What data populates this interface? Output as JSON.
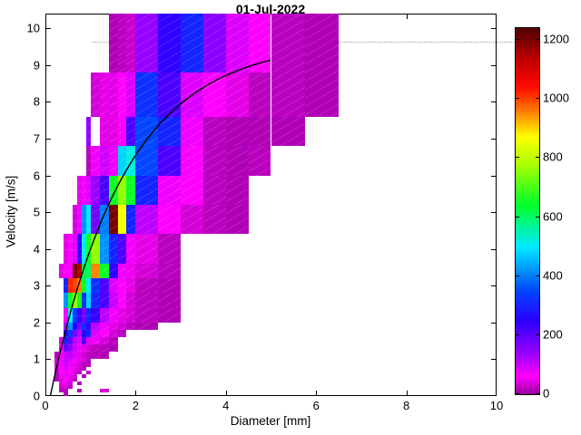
{
  "chart": {
    "title": "01-Jul-2022",
    "xlabel": "Diameter [mm]",
    "ylabel": "Velocity [m/s]"
  },
  "chart_data": {
    "type": "heatmap",
    "title": "01-Jul-2022",
    "xlabel": "Diameter [mm]",
    "ylabel": "Velocity [m/s]",
    "xlim": [
      0,
      10
    ],
    "ylim": [
      0,
      10.4
    ],
    "x_ticks": [
      0,
      2,
      4,
      6,
      8,
      10
    ],
    "y_ticks": [
      0,
      1,
      2,
      3,
      4,
      5,
      6,
      7,
      8,
      9,
      10
    ],
    "grid": "dotted line at velocity = 10 only",
    "legend_position": "colorbar right",
    "colorbar_ticks": [
      0,
      200,
      400,
      600,
      800,
      1000,
      1200
    ],
    "cmax": 1240,
    "colormap_stops": [
      [
        0,
        [
          150,
          0,
          158
        ]
      ],
      [
        60,
        [
          255,
          0,
          255
        ]
      ],
      [
        140,
        [
          150,
          0,
          255
        ]
      ],
      [
        250,
        [
          40,
          0,
          255
        ]
      ],
      [
        350,
        [
          0,
          70,
          255
        ]
      ],
      [
        500,
        [
          0,
          235,
          255
        ]
      ],
      [
        640,
        [
          0,
          255,
          40
        ]
      ],
      [
        780,
        [
          170,
          255,
          0
        ]
      ],
      [
        870,
        [
          255,
          255,
          0
        ]
      ],
      [
        960,
        [
          255,
          120,
          0
        ]
      ],
      [
        1040,
        [
          255,
          10,
          0
        ]
      ],
      [
        1140,
        [
          185,
          0,
          0
        ]
      ],
      [
        1240,
        [
          80,
          0,
          0
        ]
      ]
    ],
    "d_edges": [
      0.2,
      0.3,
      0.4,
      0.5,
      0.6,
      0.7,
      0.8,
      0.9,
      1.0,
      1.2,
      1.4,
      1.6,
      1.8,
      2.0,
      2.5,
      3.0,
      3.5,
      4.0,
      4.5,
      5.0,
      5.75,
      6.5
    ],
    "v_edges": [
      0,
      0.1,
      0.2,
      0.3,
      0.4,
      0.5,
      0.6,
      0.7,
      0.8,
      0.9,
      1.0,
      1.2,
      1.4,
      1.6,
      1.8,
      2.0,
      2.4,
      2.8,
      3.2,
      3.6,
      4.4,
      5.2,
      6.0,
      6.8,
      7.6,
      8.8,
      10.4
    ],
    "counts": [
      [
        0,
        0,
        15,
        0,
        0,
        0,
        0,
        0,
        0,
        0,
        0,
        0,
        0,
        0,
        0,
        0,
        0,
        0,
        0,
        0,
        0
      ],
      [
        0,
        20,
        20,
        0,
        0,
        15,
        0,
        0,
        0,
        35,
        0,
        0,
        0,
        0,
        0,
        0,
        0,
        0,
        0,
        0,
        0
      ],
      [
        0,
        35,
        45,
        20,
        0,
        0,
        0,
        0,
        0,
        0,
        0,
        0,
        0,
        0,
        0,
        0,
        0,
        0,
        0,
        0,
        0
      ],
      [
        0,
        45,
        50,
        35,
        0,
        20,
        0,
        0,
        0,
        0,
        0,
        0,
        0,
        0,
        0,
        0,
        0,
        0,
        0,
        0,
        0
      ],
      [
        20,
        45,
        60,
        45,
        20,
        0,
        0,
        0,
        0,
        0,
        0,
        0,
        0,
        0,
        0,
        0,
        0,
        0,
        0,
        0,
        0
      ],
      [
        20,
        50,
        70,
        50,
        35,
        0,
        20,
        0,
        0,
        0,
        0,
        0,
        0,
        0,
        0,
        0,
        0,
        0,
        0,
        0,
        0
      ],
      [
        20,
        60,
        70,
        60,
        35,
        20,
        0,
        20,
        0,
        0,
        0,
        0,
        0,
        0,
        0,
        0,
        0,
        0,
        0,
        0,
        0
      ],
      [
        35,
        60,
        85,
        60,
        45,
        35,
        20,
        0,
        0,
        0,
        0,
        0,
        0,
        0,
        0,
        0,
        0,
        0,
        0,
        0,
        0
      ],
      [
        35,
        70,
        95,
        70,
        50,
        35,
        20,
        20,
        0,
        0,
        0,
        0,
        0,
        0,
        0,
        0,
        0,
        0,
        0,
        0,
        0
      ],
      [
        35,
        70,
        100,
        85,
        60,
        45,
        35,
        20,
        0,
        0,
        0,
        0,
        0,
        0,
        0,
        0,
        0,
        0,
        0,
        0,
        0
      ],
      [
        20,
        70,
        95,
        110,
        85,
        45,
        35,
        20,
        20,
        15,
        0,
        0,
        0,
        0,
        0,
        0,
        0,
        0,
        0,
        0,
        0
      ],
      [
        0,
        60,
        190,
        150,
        95,
        70,
        45,
        35,
        20,
        20,
        15,
        0,
        0,
        0,
        0,
        0,
        0,
        0,
        0,
        0,
        0
      ],
      [
        0,
        45,
        300,
        190,
        110,
        85,
        215,
        45,
        70,
        35,
        20,
        0,
        0,
        0,
        0,
        0,
        0,
        0,
        0,
        0,
        0
      ],
      [
        0,
        0,
        235,
        320,
        170,
        110,
        245,
        300,
        85,
        60,
        35,
        20,
        0,
        0,
        0,
        0,
        0,
        0,
        0,
        0,
        0
      ],
      [
        0,
        0,
        120,
        420,
        255,
        170,
        320,
        235,
        110,
        70,
        45,
        35,
        20,
        15,
        0,
        0,
        0,
        0,
        0,
        0,
        0
      ],
      [
        0,
        0,
        70,
        500,
        330,
        235,
        170,
        300,
        235,
        110,
        70,
        45,
        35,
        20,
        15,
        0,
        0,
        0,
        0,
        0,
        0
      ],
      [
        0,
        0,
        420,
        650,
        760,
        650,
        320,
        480,
        300,
        215,
        100,
        60,
        35,
        20,
        15,
        0,
        0,
        0,
        0,
        0,
        0
      ],
      [
        0,
        0,
        300,
        1020,
        1000,
        950,
        650,
        500,
        320,
        215,
        85,
        60,
        45,
        20,
        15,
        0,
        0,
        0,
        0,
        0,
        0
      ],
      [
        0,
        45,
        60,
        60,
        1200,
        1150,
        620,
        600,
        950,
        650,
        245,
        70,
        50,
        35,
        20,
        0,
        0,
        0,
        0,
        0,
        0
      ],
      [
        0,
        0,
        45,
        60,
        85,
        245,
        500,
        650,
        760,
        420,
        300,
        215,
        70,
        45,
        20,
        0,
        0,
        0,
        0,
        0,
        0
      ],
      [
        0,
        0,
        0,
        0,
        35,
        70,
        420,
        500,
        170,
        400,
        1200,
        860,
        300,
        110,
        60,
        35,
        20,
        15,
        0,
        0,
        0
      ],
      [
        0,
        0,
        0,
        0,
        0,
        45,
        70,
        85,
        140,
        215,
        650,
        760,
        650,
        300,
        70,
        60,
        20,
        15,
        0,
        0,
        0
      ],
      [
        0,
        0,
        0,
        0,
        0,
        0,
        0,
        20,
        70,
        95,
        70,
        480,
        520,
        350,
        215,
        60,
        20,
        15,
        20,
        0,
        0
      ],
      [
        0,
        0,
        0,
        0,
        0,
        0,
        0,
        140,
        0,
        45,
        45,
        60,
        215,
        350,
        300,
        70,
        20,
        15,
        15,
        15,
        0
      ],
      [
        0,
        0,
        0,
        0,
        0,
        0,
        0,
        0,
        35,
        45,
        45,
        60,
        85,
        320,
        215,
        85,
        60,
        45,
        20,
        20,
        15
      ],
      [
        0,
        0,
        0,
        0,
        0,
        0,
        0,
        0,
        0,
        0,
        15,
        20,
        30,
        140,
        245,
        300,
        150,
        85,
        60,
        20,
        15
      ]
    ],
    "curve": {
      "name": "terminal-velocity-curve",
      "color": "#000000",
      "formula": "v = 9.65 - 10.3 * exp(-0.6 * d)",
      "d_range": [
        0.11,
        5.0
      ]
    }
  }
}
